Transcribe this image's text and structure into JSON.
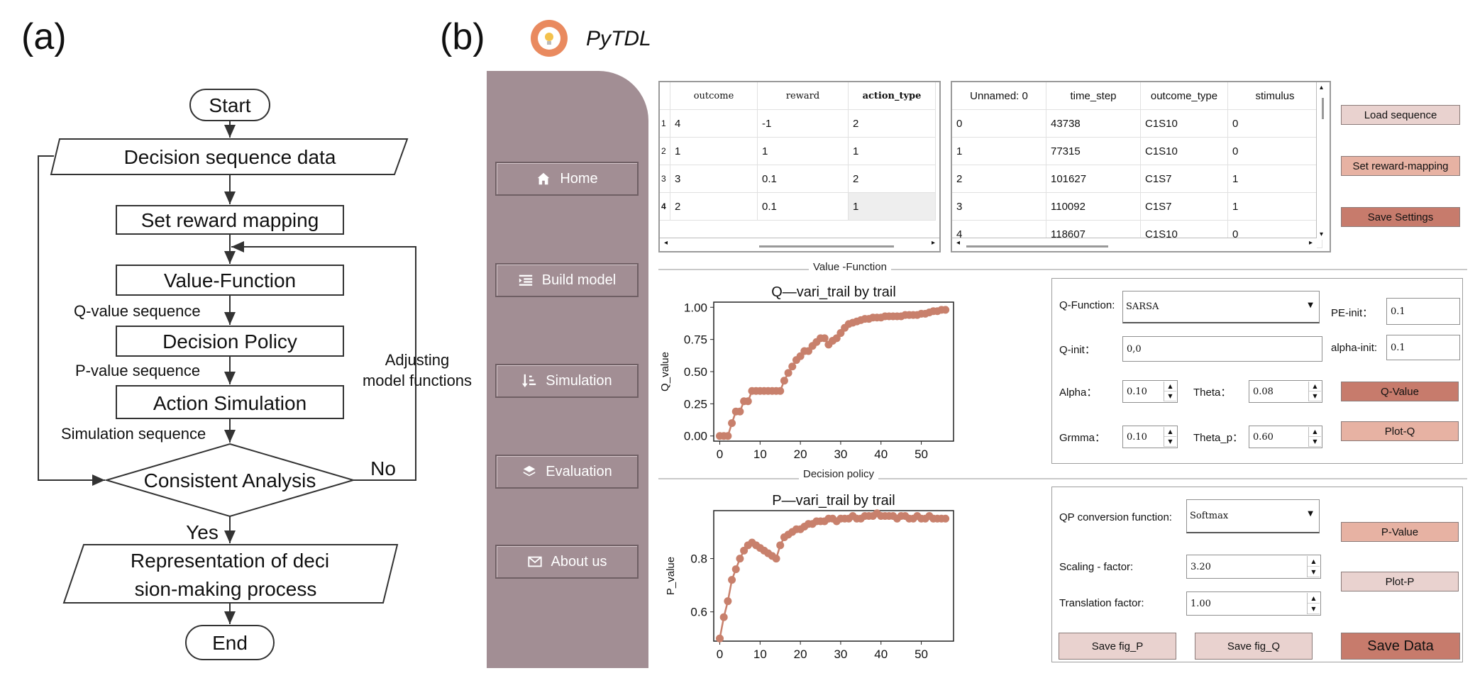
{
  "panels": {
    "a": "(a)",
    "b": "(b)"
  },
  "flowchart": {
    "start": "Start",
    "data": "Decision sequence data",
    "reward": "Set reward mapping",
    "value_function": "Value-Function",
    "q_seq": "Q-value sequence",
    "policy": "Decision Policy",
    "p_seq": "P-value sequence",
    "action": "Action Simulation",
    "sim_seq": "Simulation sequence",
    "consistent": "Consistent Analysis",
    "no": "No",
    "yes": "Yes",
    "adjust_1": "Adjusting",
    "adjust_2": "model functions",
    "representation_1": "Representation of deci",
    "representation_2": "sion-making process",
    "end": "End"
  },
  "app": {
    "title": "PyTDL",
    "colors": {
      "sidebar": "#a28e94",
      "accent_dark": "#c77b6c",
      "accent_mid": "#e7b2a3",
      "accent_light": "#e9d2cf",
      "plot": "#c8806c"
    },
    "nav": [
      {
        "label": "Home",
        "icon": "home-icon"
      },
      {
        "label": "Build model",
        "icon": "list-indent-icon"
      },
      {
        "label": "Simulation",
        "icon": "sort-icon"
      },
      {
        "label": "Evaluation",
        "icon": "layers-icon"
      },
      {
        "label": "About us",
        "icon": "envelope-icon"
      }
    ],
    "table1": {
      "headers": [
        "outcome",
        "reward",
        "action_type"
      ],
      "rows": [
        {
          "idx": "1",
          "outcome": "4",
          "reward": "-1",
          "action_type": "2"
        },
        {
          "idx": "2",
          "outcome": "1",
          "reward": "1",
          "action_type": "1"
        },
        {
          "idx": "3",
          "outcome": "3",
          "reward": "0.1",
          "action_type": "2"
        },
        {
          "idx": "4",
          "outcome": "2",
          "reward": "0.1",
          "action_type": "1"
        }
      ]
    },
    "table2": {
      "headers": [
        "Unnamed: 0",
        "time_step",
        "outcome_type",
        "stimulus"
      ],
      "rows": [
        [
          "0",
          "43738",
          "C1S10",
          "0"
        ],
        [
          "1",
          "77315",
          "C1S10",
          "0"
        ],
        [
          "2",
          "101627",
          "C1S7",
          "1"
        ],
        [
          "3",
          "110092",
          "C1S7",
          "1"
        ],
        [
          "4",
          "118607",
          "C1S10",
          "0"
        ]
      ]
    },
    "buttons": {
      "load": "Load sequence",
      "reward_map": "Set reward-mapping",
      "save_settings": "Save Settings",
      "q_value": "Q-Value",
      "plot_q": "Plot-Q",
      "p_value": "P-Value",
      "plot_p": "Plot-P",
      "save_fig_p": "Save fig_P",
      "save_fig_q": "Save fig_Q",
      "save_data": "Save Data"
    },
    "sections": {
      "value_function": "Value -Function",
      "decision_policy": "Decision policy"
    },
    "q_form": {
      "q_function_label": "Q-Function:",
      "q_function_value": "SARSA",
      "pe_init_label": "PE-init：",
      "pe_init_value": "0.1",
      "q_init_label": "Q-init：",
      "q_init_value": "0,0",
      "alpha_init_label": "alpha-init:",
      "alpha_init_value": "0.1",
      "alpha_label": "Alpha：",
      "alpha_value": "0.10",
      "theta_label": "Theta：",
      "theta_value": "0.08",
      "grmma_label": "Grmma：",
      "grmma_value": "0.10",
      "theta_p_label": "Theta_p：",
      "theta_p_value": "0.60"
    },
    "p_form": {
      "conv_label": "QP conversion function:",
      "conv_value": "Softmax",
      "scaling_label": "Scaling - factor:",
      "scaling_value": "3.20",
      "translation_label": "Translation factor:",
      "translation_value": "1.00"
    }
  },
  "chart_data": [
    {
      "type": "line",
      "title": "Q—vari_trail by trail",
      "xlabel": "",
      "ylabel": "Q_value",
      "xlim": [
        -1.5,
        58
      ],
      "ylim": [
        -0.04,
        1.04
      ],
      "xticks": [
        0,
        10,
        20,
        30,
        40,
        50
      ],
      "yticks": [
        0.0,
        0.25,
        0.5,
        0.75,
        1.0
      ],
      "x": [
        0,
        1,
        2,
        3,
        4,
        5,
        6,
        7,
        8,
        9,
        10,
        11,
        12,
        13,
        14,
        15,
        16,
        17,
        18,
        19,
        20,
        21,
        22,
        23,
        24,
        25,
        26,
        27,
        28,
        29,
        30,
        31,
        32,
        33,
        34,
        35,
        36,
        37,
        38,
        39,
        40,
        41,
        42,
        43,
        44,
        45,
        46,
        47,
        48,
        49,
        50,
        51,
        52,
        53,
        54,
        55,
        56
      ],
      "values": [
        0.0,
        0.0,
        0.0,
        0.1,
        0.19,
        0.19,
        0.27,
        0.27,
        0.35,
        0.35,
        0.35,
        0.35,
        0.35,
        0.35,
        0.35,
        0.35,
        0.43,
        0.49,
        0.54,
        0.59,
        0.62,
        0.66,
        0.66,
        0.7,
        0.73,
        0.76,
        0.76,
        0.71,
        0.74,
        0.76,
        0.8,
        0.84,
        0.87,
        0.88,
        0.89,
        0.9,
        0.91,
        0.91,
        0.92,
        0.92,
        0.92,
        0.93,
        0.93,
        0.93,
        0.93,
        0.93,
        0.94,
        0.94,
        0.94,
        0.94,
        0.95,
        0.95,
        0.96,
        0.97,
        0.97,
        0.98,
        0.98
      ]
    },
    {
      "type": "line",
      "title": "P—vari_trail by trail",
      "xlabel": "",
      "ylabel": "P_value",
      "xlim": [
        -1.5,
        58
      ],
      "ylim": [
        0.49,
        0.98
      ],
      "xticks": [
        0,
        10,
        20,
        30,
        40,
        50
      ],
      "yticks": [
        0.6,
        0.8
      ],
      "x": [
        0,
        1,
        2,
        3,
        4,
        5,
        6,
        7,
        8,
        9,
        10,
        11,
        12,
        13,
        14,
        15,
        16,
        17,
        18,
        19,
        20,
        21,
        22,
        23,
        24,
        25,
        26,
        27,
        28,
        29,
        30,
        31,
        32,
        33,
        34,
        35,
        36,
        37,
        38,
        39,
        40,
        41,
        42,
        43,
        44,
        45,
        46,
        47,
        48,
        49,
        50,
        51,
        52,
        53,
        54,
        55,
        56
      ],
      "values": [
        0.5,
        0.58,
        0.64,
        0.72,
        0.76,
        0.8,
        0.83,
        0.85,
        0.86,
        0.85,
        0.84,
        0.83,
        0.82,
        0.81,
        0.8,
        0.85,
        0.88,
        0.89,
        0.9,
        0.91,
        0.91,
        0.92,
        0.93,
        0.93,
        0.94,
        0.94,
        0.94,
        0.95,
        0.95,
        0.94,
        0.95,
        0.95,
        0.95,
        0.96,
        0.95,
        0.95,
        0.96,
        0.96,
        0.96,
        0.97,
        0.96,
        0.96,
        0.96,
        0.96,
        0.95,
        0.96,
        0.96,
        0.95,
        0.95,
        0.96,
        0.95,
        0.95,
        0.96,
        0.95,
        0.95,
        0.95,
        0.95
      ]
    }
  ]
}
